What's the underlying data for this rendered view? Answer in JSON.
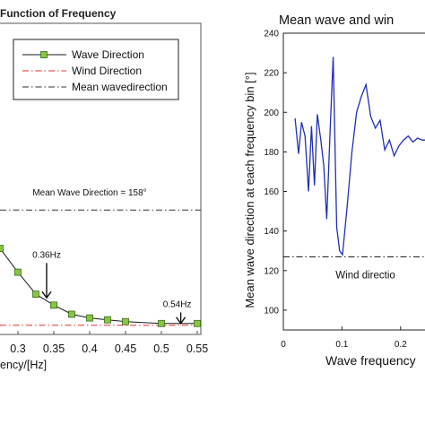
{
  "chart_data": [
    {
      "type": "line",
      "title": "Function of Frequency",
      "xlabel": "ency/[Hz]",
      "ylabel": "",
      "xlim": [
        0.275,
        0.555
      ],
      "x_ticks": [
        "0.3",
        "0.35",
        "0.4",
        "0.45",
        "0.5",
        "0.55"
      ],
      "x_tick_values": [
        0.3,
        0.35,
        0.4,
        0.45,
        0.5,
        0.55
      ],
      "ylim": [
        90,
        260
      ],
      "grid": false,
      "legend_position": "top-right",
      "legend": [
        "Wave Direction",
        "Wind Direction",
        "Mean wavedirection"
      ],
      "series": [
        {
          "name": "Wave Direction",
          "style": "solid-square-markers",
          "color": "#1a1a1a",
          "marker_color": "#88c540",
          "x": [
            0.275,
            0.3,
            0.325,
            0.35,
            0.375,
            0.4,
            0.425,
            0.45,
            0.5,
            0.55
          ],
          "y": [
            137,
            124,
            112,
            106,
            101,
            99,
            98,
            97,
            96,
            96
          ]
        },
        {
          "name": "Wind Direction",
          "style": "dash-dot",
          "color": "#e53030",
          "x": [
            0.275,
            0.555
          ],
          "y": [
            95,
            95
          ]
        },
        {
          "name": "Mean wavedirection",
          "style": "dash-dot",
          "color": "#333333",
          "x": [
            0.275,
            0.555
          ],
          "y": [
            158,
            158
          ]
        }
      ],
      "annotations": [
        {
          "text": "Mean Wave Direction = 158°",
          "x": 0.4,
          "y": 166
        },
        {
          "text": "0.36Hz",
          "x": 0.34,
          "y": 132,
          "arrow_to_y": 110
        },
        {
          "text": "0.54Hz",
          "x": 0.522,
          "y": 105,
          "arrow_to_y": 96
        }
      ]
    },
    {
      "type": "line",
      "title": "Mean wave and win",
      "xlabel": "Wave frequency",
      "ylabel": "Mean wave direction at each frequency bin [°]",
      "xlim": [
        0,
        0.26
      ],
      "x_ticks": [
        "0",
        "0.1",
        "0.2"
      ],
      "x_tick_values": [
        0,
        0.1,
        0.2
      ],
      "ylim": [
        90,
        240
      ],
      "y_ticks": [
        "100",
        "120",
        "140",
        "160",
        "180",
        "200",
        "220",
        "240"
      ],
      "y_tick_values": [
        100,
        120,
        140,
        160,
        180,
        200,
        220,
        240
      ],
      "grid": false,
      "series": [
        {
          "name": "",
          "style": "solid",
          "color": "#1f2fb8",
          "x": [
            0.02,
            0.026,
            0.031,
            0.037,
            0.043,
            0.048,
            0.053,
            0.058,
            0.064,
            0.069,
            0.074,
            0.08,
            0.085,
            0.091,
            0.096,
            0.101,
            0.109,
            0.117,
            0.125,
            0.133,
            0.141,
            0.149,
            0.157,
            0.165,
            0.173,
            0.181,
            0.189,
            0.197,
            0.205,
            0.213,
            0.221,
            0.229,
            0.237,
            0.245,
            0.253,
            0.26
          ],
          "y": [
            197,
            179,
            195,
            188,
            160,
            193,
            163,
            199,
            186,
            173,
            146,
            192,
            228,
            142,
            130,
            128,
            153,
            180,
            200,
            208,
            214,
            198,
            192,
            196,
            181,
            186,
            178,
            183,
            186,
            188,
            185,
            187,
            186,
            186,
            186,
            186
          ]
        },
        {
          "name": "",
          "style": "dash-dot",
          "color": "#111111",
          "x": [
            0,
            0.26
          ],
          "y": [
            127,
            127
          ]
        }
      ],
      "annotations": [
        {
          "text": "Wind directio",
          "x": 0.14,
          "y": 116
        }
      ]
    }
  ]
}
